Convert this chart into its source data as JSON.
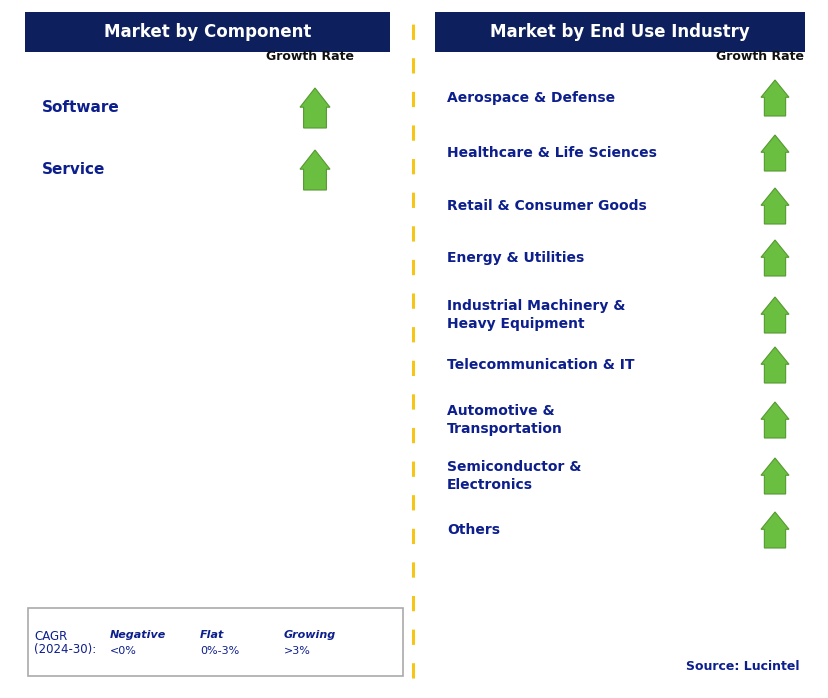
{
  "title_left": "Market by Component",
  "title_right": "Market by End Use Industry",
  "header_bg_color": "#0d1f5c",
  "header_text_color": "#ffffff",
  "growth_rate_label": "Growth Rate",
  "left_items": [
    "Software",
    "Service"
  ],
  "right_items": [
    "Aerospace & Defense",
    "Healthcare & Life Sciences",
    "Retail & Consumer Goods",
    "Energy & Utilities",
    "Industrial Machinery &\nHeavy Equipment",
    "Telecommunication & IT",
    "Automotive &\nTransportation",
    "Semiconductor &\nElectronics",
    "Others"
  ],
  "item_text_color": "#0d1f8c",
  "divider_color": "#f5c518",
  "source_text": "Source: Lucintel",
  "bg_color": "#ffffff",
  "arrow_green": "#6abf40",
  "arrow_red": "#cc1111",
  "arrow_orange": "#f5a800",
  "legend_border": "#aaaaaa"
}
